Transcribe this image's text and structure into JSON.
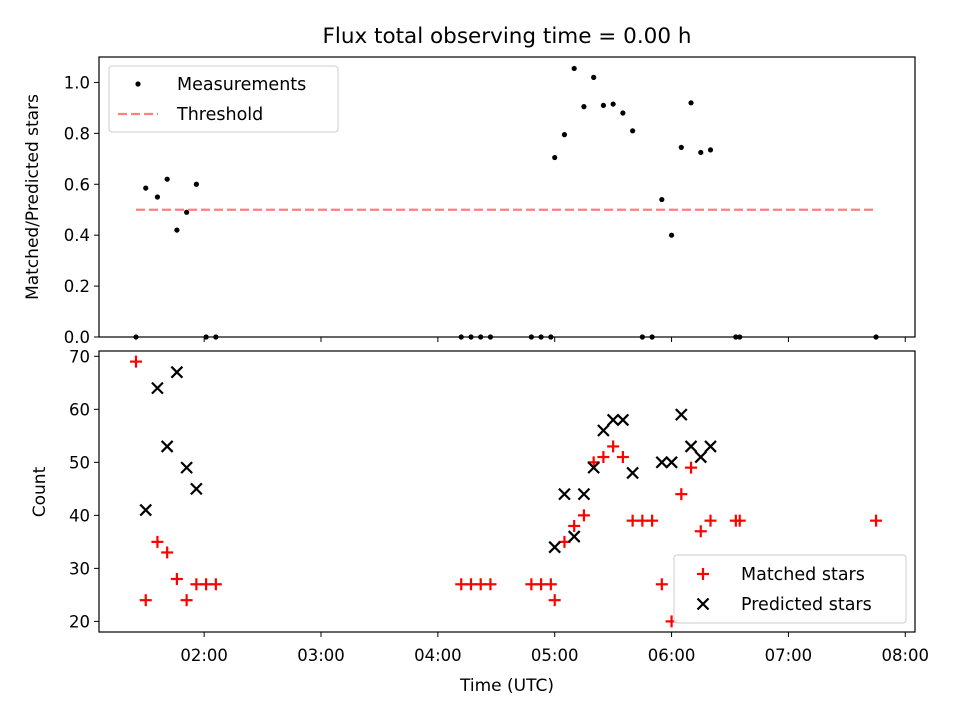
{
  "title": "Flux total observing time = 0.00 h",
  "chart_data": [
    {
      "type": "scatter",
      "ylabel": "Matched/Predicted stars",
      "xlim": [
        "01:06",
        "08:05"
      ],
      "ylim": [
        0,
        1.1
      ],
      "yticks": [
        0.0,
        0.2,
        0.4,
        0.6,
        0.8,
        1.0
      ],
      "ytick_labels": [
        "0.0",
        "0.2",
        "0.4",
        "0.6",
        "0.8",
        "1.0"
      ],
      "grid": false,
      "legend_position": "upper-left",
      "series": [
        {
          "name": "Measurements",
          "color": "#000000",
          "points": [
            {
              "x": "01:25",
              "y": 0.0
            },
            {
              "x": "01:30",
              "y": 0.585
            },
            {
              "x": "01:36",
              "y": 0.55
            },
            {
              "x": "01:41",
              "y": 0.62
            },
            {
              "x": "01:46",
              "y": 0.42
            },
            {
              "x": "01:51",
              "y": 0.49
            },
            {
              "x": "01:56",
              "y": 0.6
            },
            {
              "x": "02:01",
              "y": 0.0
            },
            {
              "x": "02:06",
              "y": 0.0
            },
            {
              "x": "04:12",
              "y": 0.0
            },
            {
              "x": "04:17",
              "y": 0.0
            },
            {
              "x": "04:22",
              "y": 0.0
            },
            {
              "x": "04:27",
              "y": 0.0
            },
            {
              "x": "04:48",
              "y": 0.0
            },
            {
              "x": "04:53",
              "y": 0.0
            },
            {
              "x": "04:58",
              "y": 0.0
            },
            {
              "x": "05:00",
              "y": 0.705
            },
            {
              "x": "05:05",
              "y": 0.795
            },
            {
              "x": "05:10",
              "y": 1.055
            },
            {
              "x": "05:15",
              "y": 0.905
            },
            {
              "x": "05:20",
              "y": 1.02
            },
            {
              "x": "05:25",
              "y": 0.91
            },
            {
              "x": "05:30",
              "y": 0.915
            },
            {
              "x": "05:35",
              "y": 0.88
            },
            {
              "x": "05:40",
              "y": 0.81
            },
            {
              "x": "05:45",
              "y": 0.0
            },
            {
              "x": "05:50",
              "y": 0.0
            },
            {
              "x": "05:55",
              "y": 0.54
            },
            {
              "x": "06:00",
              "y": 0.4
            },
            {
              "x": "06:05",
              "y": 0.745
            },
            {
              "x": "06:10",
              "y": 0.92
            },
            {
              "x": "06:15",
              "y": 0.725
            },
            {
              "x": "06:20",
              "y": 0.735
            },
            {
              "x": "06:33",
              "y": 0.0
            },
            {
              "x": "06:35",
              "y": 0.0
            },
            {
              "x": "07:45",
              "y": 0.0
            }
          ]
        },
        {
          "name": "Threshold",
          "color": "#ff7f7f",
          "line": true,
          "points": [
            {
              "x": "01:25",
              "y": 0.5
            },
            {
              "x": "07:45",
              "y": 0.5
            }
          ]
        }
      ]
    },
    {
      "type": "scatter",
      "xlabel": "Time (UTC)",
      "ylabel": "Count",
      "xlim": [
        "01:06",
        "08:05"
      ],
      "ylim": [
        18,
        71
      ],
      "yticks": [
        20,
        30,
        40,
        50,
        60,
        70
      ],
      "ytick_labels": [
        "20",
        "30",
        "40",
        "50",
        "60",
        "70"
      ],
      "xticks": [
        "02:00",
        "03:00",
        "04:00",
        "05:00",
        "06:00",
        "07:00",
        "08:00"
      ],
      "grid": false,
      "legend_position": "lower-right",
      "series": [
        {
          "name": "Matched stars",
          "color": "#ff0000",
          "marker": "plus",
          "points": [
            {
              "x": "01:25",
              "y": 69
            },
            {
              "x": "01:30",
              "y": 24
            },
            {
              "x": "01:36",
              "y": 35
            },
            {
              "x": "01:41",
              "y": 33
            },
            {
              "x": "01:46",
              "y": 28
            },
            {
              "x": "01:51",
              "y": 24
            },
            {
              "x": "01:56",
              "y": 27
            },
            {
              "x": "02:01",
              "y": 27
            },
            {
              "x": "02:06",
              "y": 27
            },
            {
              "x": "04:12",
              "y": 27
            },
            {
              "x": "04:17",
              "y": 27
            },
            {
              "x": "04:22",
              "y": 27
            },
            {
              "x": "04:27",
              "y": 27
            },
            {
              "x": "04:48",
              "y": 27
            },
            {
              "x": "04:53",
              "y": 27
            },
            {
              "x": "04:58",
              "y": 27
            },
            {
              "x": "05:00",
              "y": 24
            },
            {
              "x": "05:05",
              "y": 35
            },
            {
              "x": "05:10",
              "y": 38
            },
            {
              "x": "05:15",
              "y": 40
            },
            {
              "x": "05:20",
              "y": 50
            },
            {
              "x": "05:25",
              "y": 51
            },
            {
              "x": "05:30",
              "y": 53
            },
            {
              "x": "05:35",
              "y": 51
            },
            {
              "x": "05:40",
              "y": 39
            },
            {
              "x": "05:45",
              "y": 39
            },
            {
              "x": "05:50",
              "y": 39
            },
            {
              "x": "05:55",
              "y": 27
            },
            {
              "x": "06:00",
              "y": 20
            },
            {
              "x": "06:05",
              "y": 44
            },
            {
              "x": "06:10",
              "y": 49
            },
            {
              "x": "06:15",
              "y": 37
            },
            {
              "x": "06:20",
              "y": 39
            },
            {
              "x": "06:33",
              "y": 39
            },
            {
              "x": "06:35",
              "y": 39
            },
            {
              "x": "07:45",
              "y": 39
            }
          ]
        },
        {
          "name": "Predicted stars",
          "color": "#000000",
          "marker": "x",
          "points": [
            {
              "x": "01:30",
              "y": 41
            },
            {
              "x": "01:36",
              "y": 64
            },
            {
              "x": "01:41",
              "y": 53
            },
            {
              "x": "01:46",
              "y": 67
            },
            {
              "x": "01:51",
              "y": 49
            },
            {
              "x": "01:56",
              "y": 45
            },
            {
              "x": "05:00",
              "y": 34
            },
            {
              "x": "05:05",
              "y": 44
            },
            {
              "x": "05:10",
              "y": 36
            },
            {
              "x": "05:15",
              "y": 44
            },
            {
              "x": "05:20",
              "y": 49
            },
            {
              "x": "05:25",
              "y": 56
            },
            {
              "x": "05:30",
              "y": 58
            },
            {
              "x": "05:35",
              "y": 58
            },
            {
              "x": "05:40",
              "y": 48
            },
            {
              "x": "05:55",
              "y": 50
            },
            {
              "x": "06:00",
              "y": 50
            },
            {
              "x": "06:05",
              "y": 59
            },
            {
              "x": "06:10",
              "y": 53
            },
            {
              "x": "06:15",
              "y": 51
            },
            {
              "x": "06:20",
              "y": 53
            }
          ]
        }
      ]
    }
  ]
}
